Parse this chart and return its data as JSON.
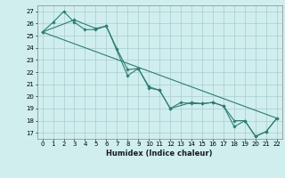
{
  "xlabel": "Humidex (Indice chaleur)",
  "ylabel": "",
  "bg_color": "#d0eeee",
  "grid_color": "#aacccc",
  "line_color": "#2e7d6e",
  "xlim": [
    -0.5,
    22.5
  ],
  "ylim": [
    16.5,
    27.5
  ],
  "xticks": [
    0,
    1,
    2,
    3,
    4,
    5,
    6,
    7,
    8,
    9,
    10,
    11,
    12,
    13,
    14,
    15,
    16,
    17,
    18,
    19,
    20,
    21,
    22
  ],
  "yticks": [
    17,
    18,
    19,
    20,
    21,
    22,
    23,
    24,
    25,
    26,
    27
  ],
  "line1": [
    [
      0,
      25.3
    ],
    [
      1,
      26.1
    ],
    [
      2,
      27.0
    ],
    [
      3,
      26.1
    ],
    [
      4,
      25.5
    ],
    [
      5,
      25.5
    ],
    [
      6,
      25.8
    ],
    [
      7,
      23.9
    ],
    [
      8,
      22.2
    ],
    [
      9,
      22.3
    ],
    [
      10,
      20.8
    ],
    [
      11,
      20.5
    ],
    [
      12,
      19.0
    ],
    [
      13,
      19.5
    ],
    [
      14,
      19.4
    ],
    [
      15,
      19.4
    ],
    [
      16,
      19.5
    ],
    [
      17,
      19.2
    ],
    [
      18,
      18.0
    ],
    [
      19,
      18.0
    ],
    [
      20,
      16.7
    ],
    [
      21,
      17.1
    ],
    [
      22,
      18.2
    ]
  ],
  "line2": [
    [
      0,
      25.3
    ],
    [
      3,
      26.3
    ],
    [
      5,
      25.6
    ],
    [
      6,
      25.8
    ],
    [
      8,
      21.7
    ],
    [
      9,
      22.3
    ],
    [
      10,
      20.7
    ],
    [
      11,
      20.5
    ],
    [
      12,
      19.0
    ],
    [
      14,
      19.5
    ],
    [
      15,
      19.4
    ],
    [
      16,
      19.5
    ],
    [
      17,
      19.2
    ],
    [
      18,
      17.5
    ],
    [
      19,
      18.0
    ],
    [
      20,
      16.7
    ],
    [
      21,
      17.1
    ],
    [
      22,
      18.2
    ]
  ],
  "line3_straight": [
    [
      0,
      25.3
    ],
    [
      22,
      18.2
    ]
  ]
}
